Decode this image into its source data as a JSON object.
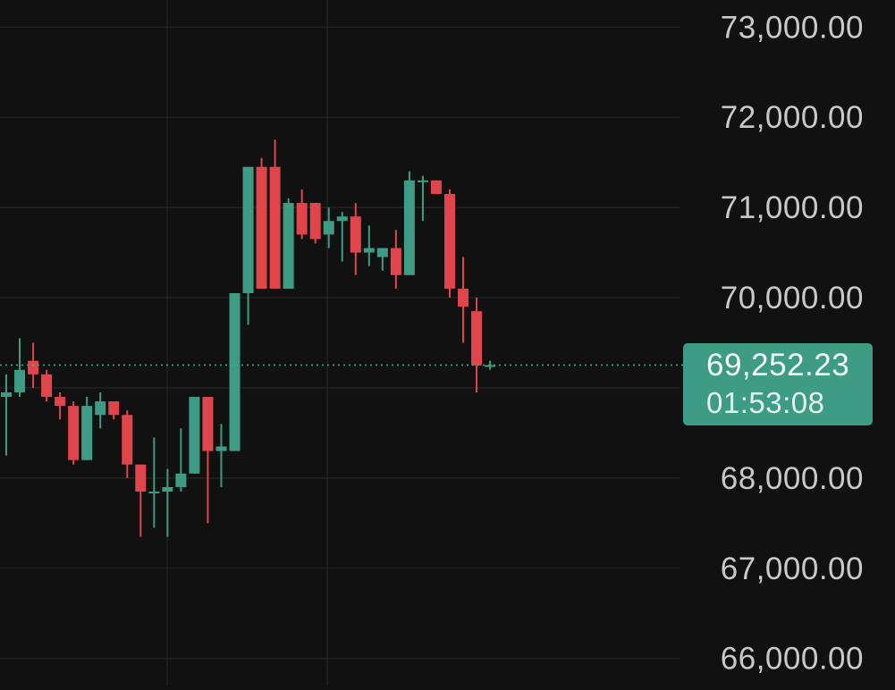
{
  "theme": {
    "background": "#111111",
    "grid": "#262626",
    "up_color": "#3d9c83",
    "down_color": "#e0454c",
    "axis_text": "#c9c9c9",
    "last_price_line": "#4aa58d",
    "last_price_tag_bg": "#3d9c83"
  },
  "last_price": {
    "value": 69252.23,
    "label": "69,252.23",
    "countdown": "01:53:08"
  },
  "chart_data": {
    "type": "candlestick",
    "y_axis": {
      "position": "right",
      "range": [
        65700,
        73300
      ],
      "ticks": [
        73000,
        72000,
        71000,
        70000,
        68000,
        67000,
        66000
      ],
      "tick_labels": [
        "73,000.00",
        "72,000.00",
        "71,000.00",
        "70,000.00",
        "68,000.00",
        "67,000.00",
        "66,000.00"
      ]
    },
    "grid": {
      "horizontal": true,
      "vertical": true
    },
    "candles": [
      {
        "o": 68900,
        "h": 69150,
        "l": 68250,
        "c": 68950
      },
      {
        "o": 68950,
        "h": 69550,
        "l": 68900,
        "c": 69200
      },
      {
        "o": 69300,
        "h": 69500,
        "l": 69000,
        "c": 69150
      },
      {
        "o": 69150,
        "h": 69200,
        "l": 68850,
        "c": 68900
      },
      {
        "o": 68900,
        "h": 68950,
        "l": 68650,
        "c": 68800
      },
      {
        "o": 68800,
        "h": 68850,
        "l": 68150,
        "c": 68200
      },
      {
        "o": 68200,
        "h": 68900,
        "l": 68200,
        "c": 68800
      },
      {
        "o": 68700,
        "h": 68950,
        "l": 68550,
        "c": 68850
      },
      {
        "o": 68850,
        "h": 68850,
        "l": 68650,
        "c": 68700
      },
      {
        "o": 68700,
        "h": 68750,
        "l": 68000,
        "c": 68150
      },
      {
        "o": 68150,
        "h": 68150,
        "l": 67350,
        "c": 67850
      },
      {
        "o": 67850,
        "h": 68450,
        "l": 67450,
        "c": 67850
      },
      {
        "o": 67850,
        "h": 68100,
        "l": 67350,
        "c": 67900
      },
      {
        "o": 67900,
        "h": 68550,
        "l": 67850,
        "c": 68050
      },
      {
        "o": 68050,
        "h": 68900,
        "l": 68050,
        "c": 68900
      },
      {
        "o": 68900,
        "h": 68900,
        "l": 67500,
        "c": 68300
      },
      {
        "o": 68300,
        "h": 68600,
        "l": 67900,
        "c": 68350
      },
      {
        "o": 68300,
        "h": 70050,
        "l": 68300,
        "c": 70050
      },
      {
        "o": 70050,
        "h": 71450,
        "l": 69700,
        "c": 71450
      },
      {
        "o": 71450,
        "h": 71550,
        "l": 70100,
        "c": 70100
      },
      {
        "o": 71450,
        "h": 71750,
        "l": 70100,
        "c": 70100
      },
      {
        "o": 70100,
        "h": 71100,
        "l": 70100,
        "c": 71050
      },
      {
        "o": 71050,
        "h": 71200,
        "l": 70650,
        "c": 70700
      },
      {
        "o": 71050,
        "h": 71050,
        "l": 70600,
        "c": 70650
      },
      {
        "o": 70700,
        "h": 71000,
        "l": 70550,
        "c": 70850
      },
      {
        "o": 70850,
        "h": 70950,
        "l": 70400,
        "c": 70900
      },
      {
        "o": 70900,
        "h": 71050,
        "l": 70250,
        "c": 70500
      },
      {
        "o": 70500,
        "h": 70800,
        "l": 70350,
        "c": 70550
      },
      {
        "o": 70450,
        "h": 70550,
        "l": 70300,
        "c": 70550
      },
      {
        "o": 70550,
        "h": 70750,
        "l": 70100,
        "c": 70250
      },
      {
        "o": 70250,
        "h": 71400,
        "l": 70250,
        "c": 71300
      },
      {
        "o": 71300,
        "h": 71350,
        "l": 70850,
        "c": 71300
      },
      {
        "o": 71300,
        "h": 71300,
        "l": 71150,
        "c": 71150
      },
      {
        "o": 71150,
        "h": 71200,
        "l": 70000,
        "c": 70100
      },
      {
        "o": 70100,
        "h": 70450,
        "l": 69500,
        "c": 69900
      },
      {
        "o": 69850,
        "h": 70000,
        "l": 68950,
        "c": 69250
      },
      {
        "o": 69250,
        "h": 69300,
        "l": 69200,
        "c": 69252.23
      }
    ]
  }
}
